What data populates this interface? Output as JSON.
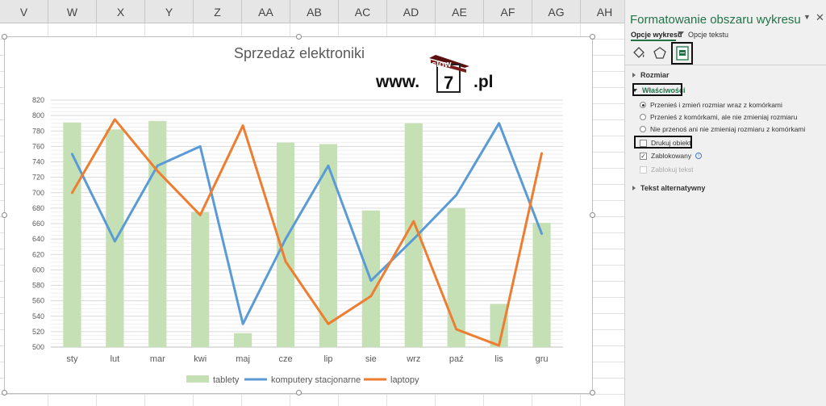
{
  "columns": [
    "V",
    "W",
    "X",
    "Y",
    "Z",
    "AA",
    "AB",
    "AC",
    "AD",
    "AE",
    "AF",
    "AG",
    "AH"
  ],
  "chart": {
    "watermark": {
      "www": "www.",
      "logo_top": "slow",
      "logo_num": "7",
      "pl": ".pl"
    }
  },
  "chart_data": {
    "type": "bar",
    "title": "Sprzedaż elektroniki",
    "categories": [
      "sty",
      "lut",
      "mar",
      "kwi",
      "maj",
      "cze",
      "lip",
      "sie",
      "wrz",
      "paź",
      "lis",
      "gru"
    ],
    "ylim": [
      500,
      820
    ],
    "yticks": [
      "500",
      "520",
      "540",
      "560",
      "580",
      "600",
      "620",
      "640",
      "660",
      "680",
      "700",
      "720",
      "740",
      "760",
      "780",
      "800",
      "820"
    ],
    "grid": true,
    "legend": "bottom",
    "series": [
      {
        "name": "tablety",
        "type": "bar",
        "color": "#c5e0b4",
        "values": [
          791,
          782,
          793,
          675,
          518,
          765,
          763,
          677,
          790,
          680,
          556,
          661
        ]
      },
      {
        "name": "komputery stacjonarne",
        "type": "line",
        "color": "#5b9bd5",
        "values": [
          750,
          637,
          735,
          760,
          530,
          640,
          735,
          586,
          640,
          697,
          790,
          647
        ]
      },
      {
        "name": "laptopy",
        "type": "line",
        "color": "#ed7d31",
        "values": [
          700,
          795,
          728,
          671,
          787,
          611,
          530,
          566,
          663,
          523,
          502,
          751
        ]
      }
    ]
  },
  "pane": {
    "title": "Formatowanie obszaru wykresu",
    "tab_chart_options": "Opcje wykresu",
    "tab_text_options": "Opcje tekstu",
    "section_size": "Rozmiar",
    "section_properties": "Właściwości",
    "radio_1": "Przenieś i zmień rozmiar wraz z komórkami",
    "radio_2": "Przenieś z komórkami, ale nie zmieniaj rozmiaru",
    "radio_3": "Nie przenoś ani nie zmieniaj rozmiaru z komórkami",
    "check_print": "Drukuj obiekt",
    "check_locked": "Zablokowany",
    "check_lock_text": "Zablokuj tekst",
    "section_alt_text": "Tekst alternatywny",
    "accent_color": "#217346"
  }
}
